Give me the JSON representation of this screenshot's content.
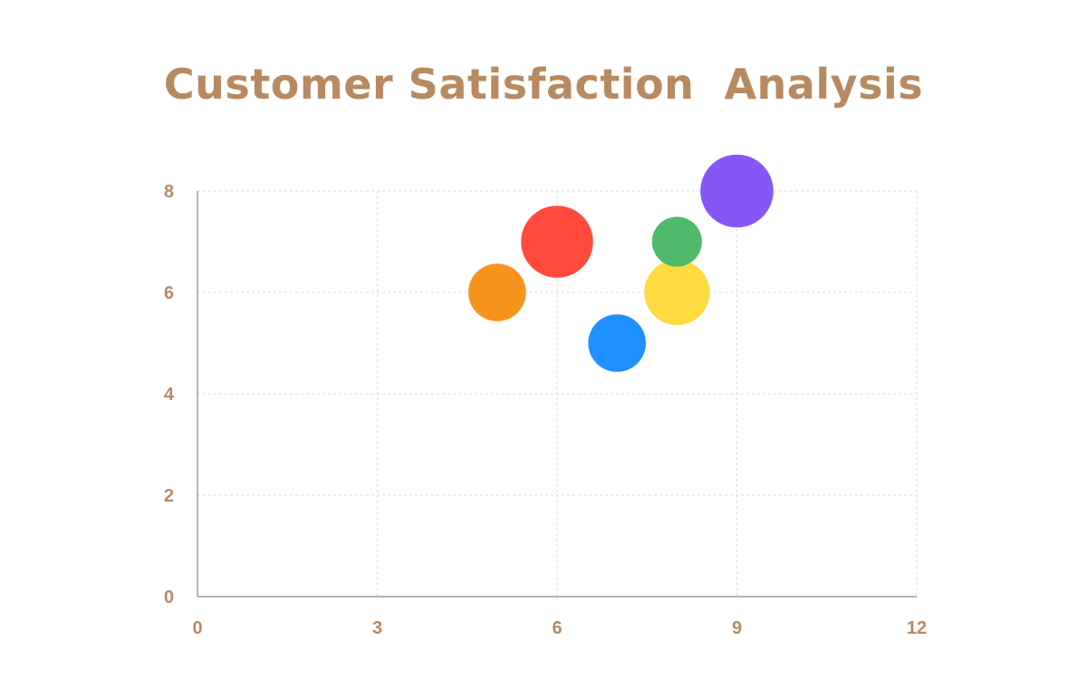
{
  "colors": {
    "text": "#b88a62",
    "grid": "#dddddd",
    "axis": "#888888"
  },
  "chart_data": {
    "type": "scatter",
    "subtype": "bubble",
    "title": "Customer Satisfaction  Analysis",
    "xlabel": "",
    "ylabel": "",
    "xlim": [
      0,
      12
    ],
    "ylim": [
      0,
      8
    ],
    "x_ticks": [
      0,
      3,
      6,
      9,
      12
    ],
    "y_ticks": [
      0,
      2,
      4,
      6,
      8
    ],
    "grid": true,
    "legend": "none",
    "points": [
      {
        "x": 5,
        "y": 6,
        "size": 6,
        "color": "#f7941d"
      },
      {
        "x": 6,
        "y": 7,
        "size": 7.5,
        "color": "#ff4a3d"
      },
      {
        "x": 7,
        "y": 5,
        "size": 6,
        "color": "#1e90ff"
      },
      {
        "x": 8,
        "y": 6,
        "size": 6.8,
        "color": "#ffdb3f"
      },
      {
        "x": 8,
        "y": 7,
        "size": 5.2,
        "color": "#50b96a"
      },
      {
        "x": 9,
        "y": 8,
        "size": 7.6,
        "color": "#8656f6"
      }
    ]
  }
}
